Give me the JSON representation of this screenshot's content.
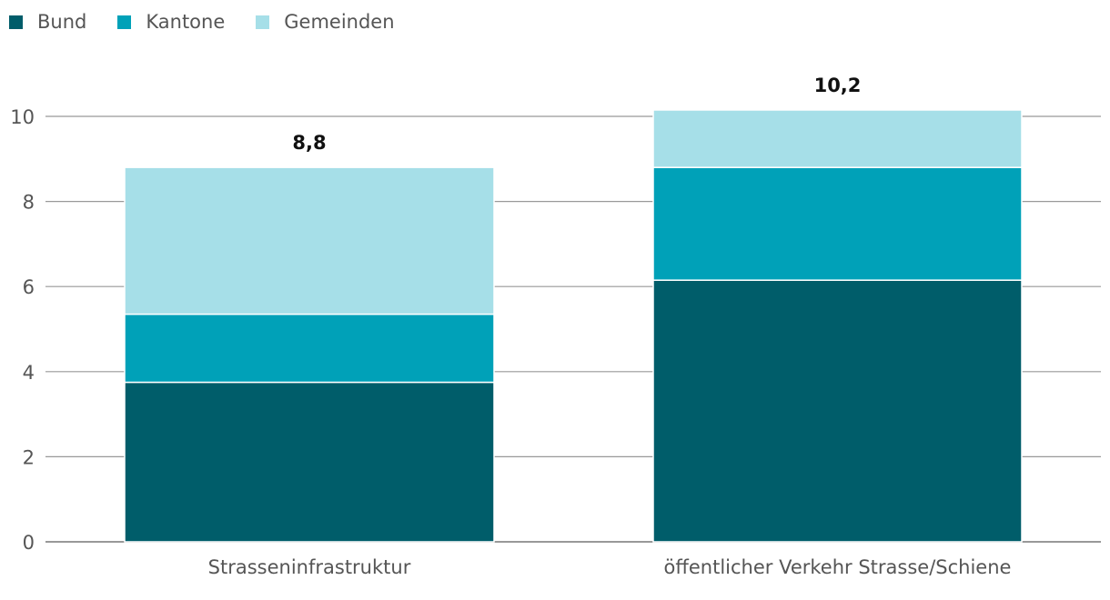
{
  "chart_data": {
    "type": "bar",
    "stacked": true,
    "categories": [
      "Strasseninfrastruktur",
      "öffentlicher Verkehr Strasse/Schiene"
    ],
    "series": [
      {
        "name": "Bund",
        "color": "#005d6a",
        "values": [
          3.75,
          6.15
        ]
      },
      {
        "name": "Kantone",
        "color": "#00a1b8",
        "values": [
          1.6,
          2.65
        ]
      },
      {
        "name": "Gemeinden",
        "color": "#a6dfe8",
        "values": [
          3.45,
          1.35
        ]
      }
    ],
    "totals": [
      "8,8",
      "10,2"
    ],
    "yticks": [
      "0",
      "2",
      "4",
      "6",
      "8",
      "10"
    ],
    "ylim": [
      0,
      11
    ],
    "grid": true,
    "legend": "top-left"
  }
}
